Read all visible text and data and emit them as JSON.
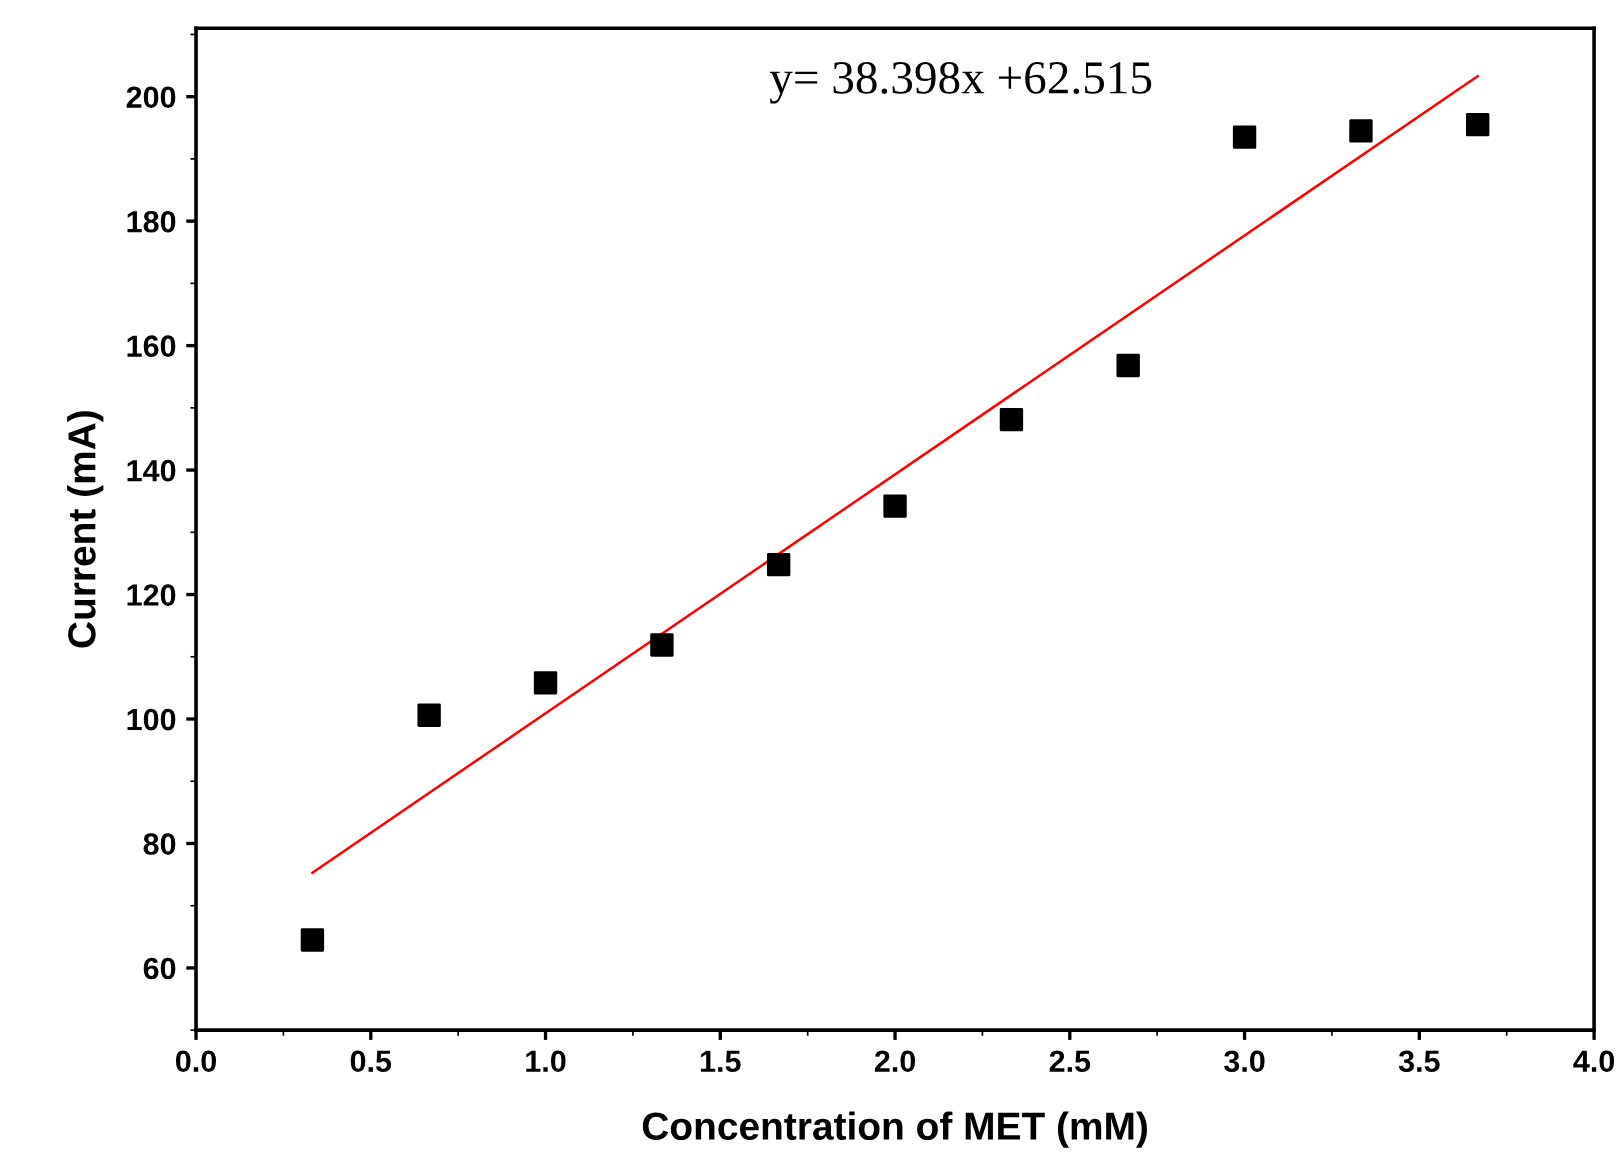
{
  "chart_data": {
    "type": "scatter",
    "xlabel": "Concentration of MET (mM)",
    "ylabel": "Current (mA)",
    "annotations": [
      "y= 38.398x +62.515"
    ],
    "xlim": [
      0,
      4
    ],
    "xticks": [
      {
        "value": 0,
        "label": "0.0"
      },
      0.5,
      {
        "value": 1,
        "label": "1.0"
      },
      1.5,
      {
        "value": 2,
        "label": "2.0"
      },
      2.5,
      {
        "value": 3,
        "label": "3.0"
      },
      3.5,
      {
        "value": 4,
        "label": "4.0"
      }
    ],
    "ylim": [
      50,
      211
    ],
    "yticks": [
      60,
      80,
      100,
      120,
      140,
      160,
      180,
      200
    ],
    "grid": false,
    "marker": "square",
    "series": [
      {
        "color": "#000000",
        "x": [
          0.333,
          0.667,
          1.0,
          1.333,
          1.667,
          2.0,
          2.333,
          2.667,
          3.0,
          3.333,
          3.667
        ],
        "values": [
          64.5,
          100.6,
          105.8,
          111.9,
          124.8,
          134.2,
          148.1,
          156.8,
          193.5,
          194.5,
          195.5
        ]
      },
      {
        "type": "line",
        "color": "#ff0000",
        "marker": "none",
        "line_style": "solid",
        "x": [
          0.333,
          3.667
        ],
        "values": [
          75.3,
          203.3
        ]
      }
    ]
  }
}
